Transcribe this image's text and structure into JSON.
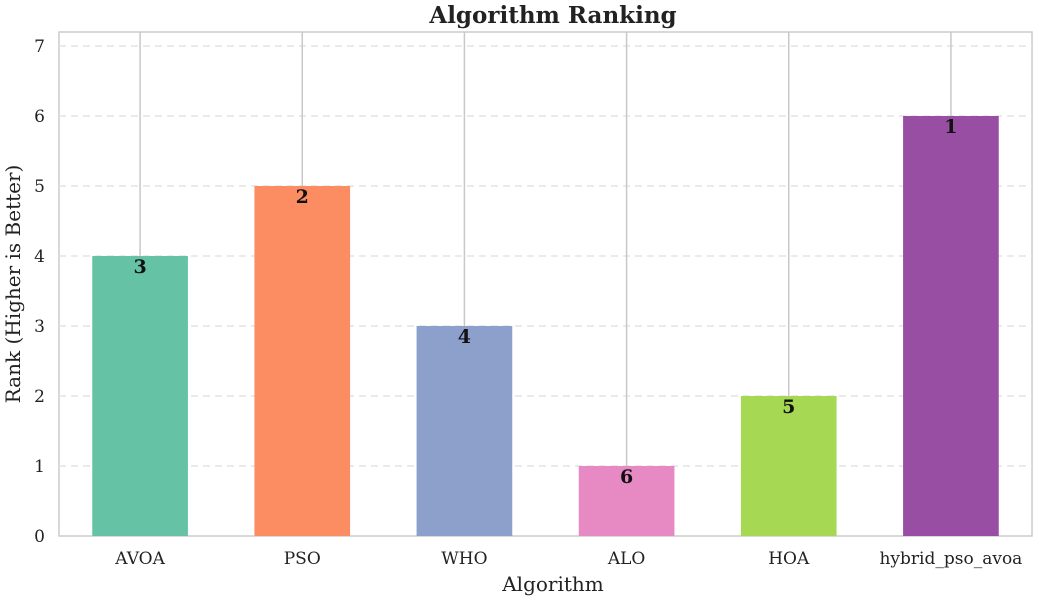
{
  "chart_data": {
    "type": "bar",
    "title": "Algorithm Ranking",
    "xlabel": "Algorithm",
    "ylabel": "Rank (Higher is Better)",
    "categories": [
      "AVOA",
      "PSO",
      "WHO",
      "ALO",
      "HOA",
      "hybrid_pso_avoa"
    ],
    "values": [
      4,
      5,
      3,
      1,
      2,
      6
    ],
    "data_labels": [
      "3",
      "2",
      "4",
      "6",
      "5",
      "1"
    ],
    "colors": [
      "#66c2a5",
      "#fc8d62",
      "#8da0cb",
      "#e78ac3",
      "#a6d854",
      "#984ea3"
    ],
    "ylim": [
      0,
      7.2
    ],
    "yticks": [
      "0",
      "1",
      "2",
      "3",
      "4",
      "5",
      "6",
      "7"
    ],
    "grid": true,
    "legend": "none"
  }
}
